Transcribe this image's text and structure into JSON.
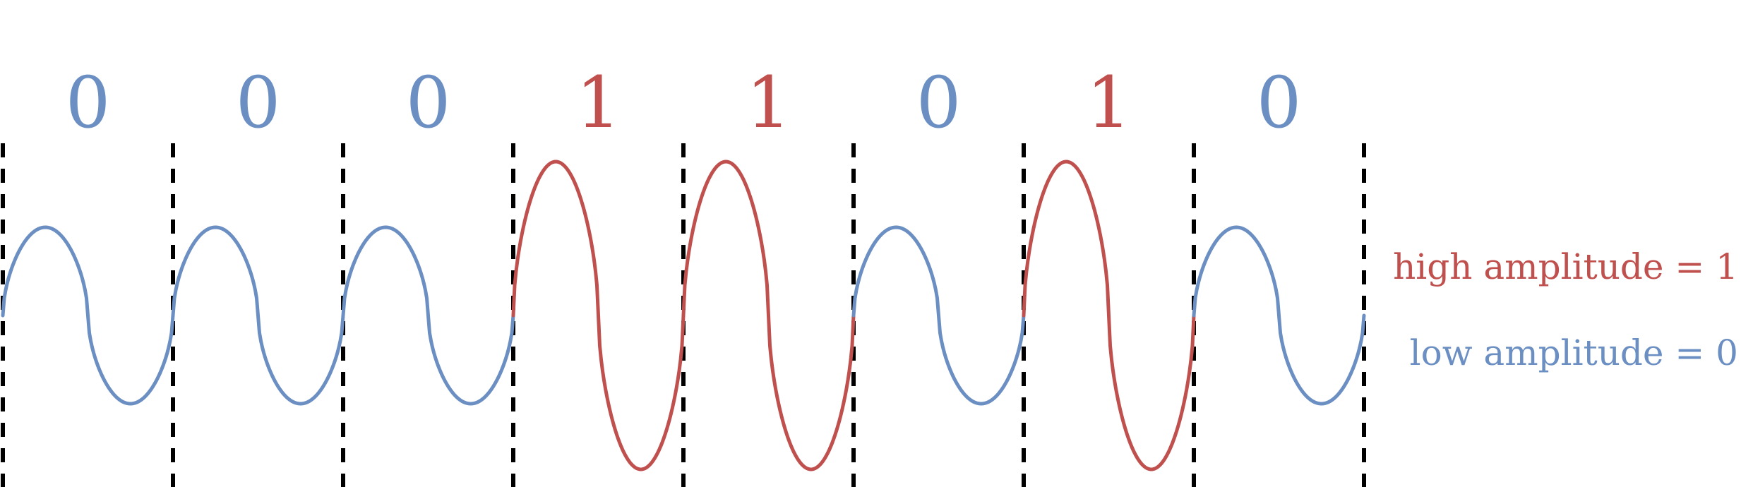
{
  "bits": [
    "0",
    "0",
    "0",
    "1",
    "1",
    "0",
    "1",
    "0"
  ],
  "legend": {
    "high": "high amplitude = 1",
    "low": "low amplitude = 0"
  },
  "colors": {
    "one": "#c0504d",
    "zero": "#6b8fc2",
    "divider": "#000000"
  }
}
